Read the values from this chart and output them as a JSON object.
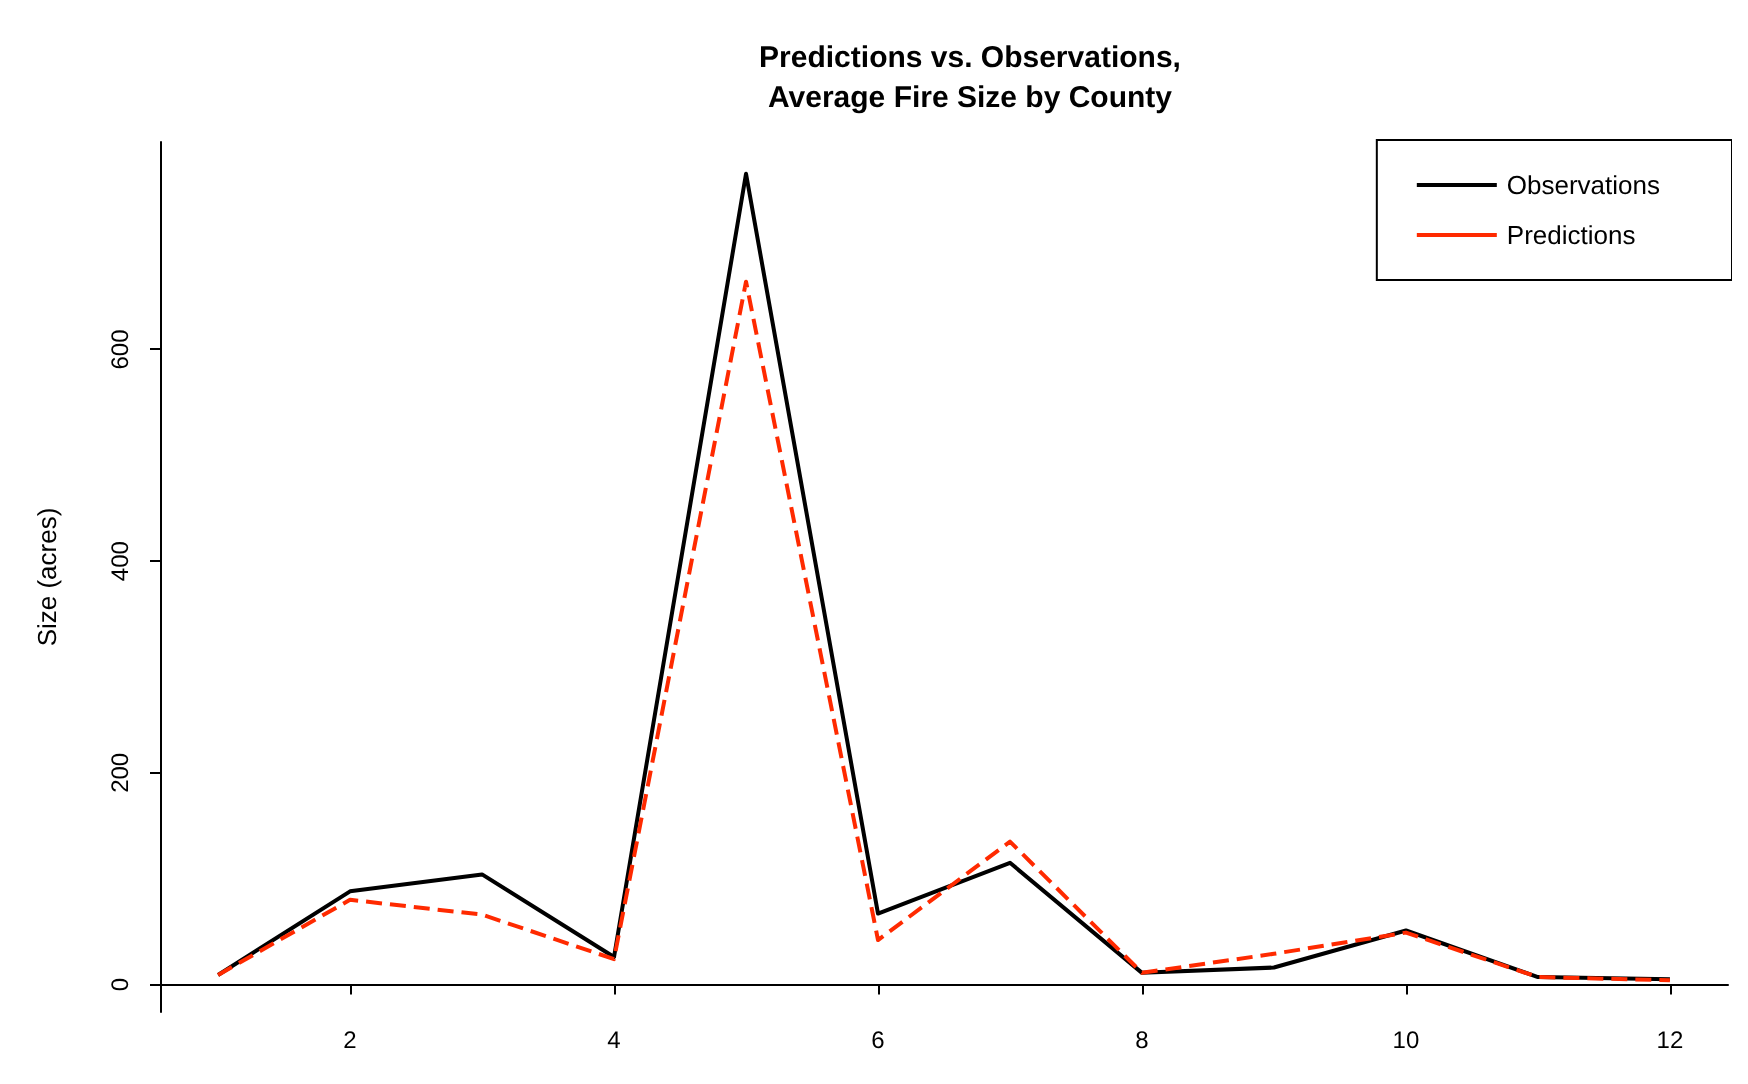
{
  "chart_data": {
    "type": "line",
    "title": "Predictions vs. Observations,\nAverage Fire Size by County",
    "ylabel": "Size (acres)",
    "x": [
      1,
      2,
      3,
      4,
      5,
      6,
      7,
      8,
      9,
      10,
      11,
      12
    ],
    "series": [
      {
        "name": "Observations",
        "color": "#000000",
        "line_style": "solid",
        "values": [
          9,
          88,
          104,
          26,
          766,
          67,
          115,
          11,
          16,
          51,
          7,
          5
        ]
      },
      {
        "name": "Predictions",
        "color": "#ff2a00",
        "line_style": "dashed",
        "values": [
          9,
          80,
          66,
          24,
          664,
          42,
          135,
          11,
          29,
          49,
          7,
          4
        ]
      }
    ],
    "xlim": [
      0.56,
      12.44
    ],
    "xticks": [
      2,
      4,
      6,
      8,
      10,
      12
    ],
    "ylim": [
      -26,
      796
    ],
    "yticks": [
      0,
      200,
      400,
      600
    ],
    "grid": false,
    "legend": "top right",
    "marker": "none"
  }
}
